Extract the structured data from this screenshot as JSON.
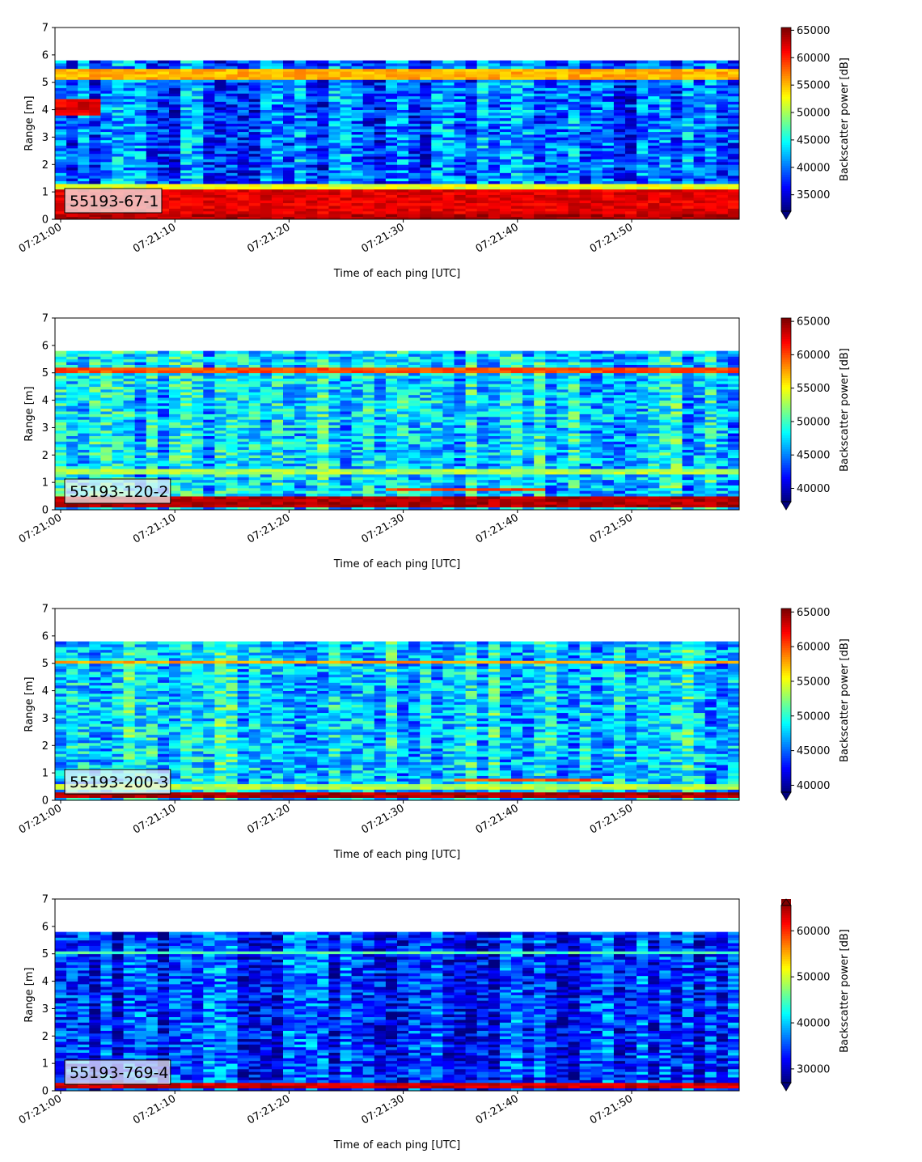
{
  "chart_data": [
    {
      "type": "heatmap",
      "label": "55193-67-1",
      "xlabel": "Time of each ping [UTC]",
      "ylabel": "Range [m]",
      "x_ticks": [
        "07:21:00",
        "07:21:10",
        "07:21:20",
        "07:21:30",
        "07:21:40",
        "07:21:50"
      ],
      "ylim": [
        0,
        7
      ],
      "y_ticks": [
        "0",
        "1",
        "2",
        "3",
        "4",
        "5",
        "6",
        "7"
      ],
      "data_range_max": 5.85,
      "colorbar_label": "Backscatter power [dB]",
      "colorbar_min": 32000,
      "colorbar_max": 65500,
      "colorbar_ticks": [
        35000,
        40000,
        45000,
        50000,
        55000,
        60000,
        65000
      ],
      "colorbar_extend": "min",
      "features": [
        {
          "y0": 0.0,
          "y1": 0.25,
          "level": 0.95
        },
        {
          "y0": 0.25,
          "y1": 1.1,
          "level": 0.9
        },
        {
          "y0": 1.1,
          "y1": 1.3,
          "level": 0.6
        },
        {
          "y0": 5.1,
          "y1": 5.55,
          "level": 0.7
        },
        {
          "y0": 3.8,
          "y1": 4.4,
          "level": 0.9,
          "t0": 0,
          "t1": 4
        }
      ],
      "background_level": 0.22
    },
    {
      "type": "heatmap",
      "label": "55193-120-2",
      "xlabel": "Time of each ping [UTC]",
      "ylabel": "Range [m]",
      "x_ticks": [
        "07:21:00",
        "07:21:10",
        "07:21:20",
        "07:21:30",
        "07:21:40",
        "07:21:50"
      ],
      "ylim": [
        0,
        7
      ],
      "y_ticks": [
        "0",
        "1",
        "2",
        "3",
        "4",
        "5",
        "6",
        "7"
      ],
      "data_range_max": 5.8,
      "colorbar_label": "Backscatter power [dB]",
      "colorbar_min": 38000,
      "colorbar_max": 65500,
      "colorbar_ticks": [
        40000,
        45000,
        50000,
        55000,
        60000,
        65000
      ],
      "colorbar_extend": "min",
      "features": [
        {
          "y0": 0.1,
          "y1": 0.55,
          "level": 0.95
        },
        {
          "y0": 1.3,
          "y1": 1.55,
          "level": 0.55
        },
        {
          "y0": 5.05,
          "y1": 5.2,
          "level": 0.8
        },
        {
          "y0": 0.7,
          "y1": 0.85,
          "level": 0.8,
          "t0": 29,
          "t1": 43
        }
      ],
      "background_level": 0.35
    },
    {
      "type": "heatmap",
      "label": "55193-200-3",
      "xlabel": "Time of each ping [UTC]",
      "ylabel": "Range [m]",
      "x_ticks": [
        "07:21:00",
        "07:21:10",
        "07:21:20",
        "07:21:30",
        "07:21:40",
        "07:21:50"
      ],
      "ylim": [
        0,
        7
      ],
      "y_ticks": [
        "0",
        "1",
        "2",
        "3",
        "4",
        "5",
        "6",
        "7"
      ],
      "data_range_max": 5.8,
      "colorbar_label": "Backscatter power [dB]",
      "colorbar_min": 39000,
      "colorbar_max": 65500,
      "colorbar_ticks": [
        40000,
        45000,
        50000,
        55000,
        60000,
        65000
      ],
      "colorbar_extend": "min",
      "features": [
        {
          "y0": 0.1,
          "y1": 0.35,
          "level": 0.95
        },
        {
          "y0": 0.4,
          "y1": 0.6,
          "level": 0.55
        },
        {
          "y0": 5.0,
          "y1": 5.15,
          "level": 0.72
        },
        {
          "y0": 0.72,
          "y1": 0.85,
          "level": 0.8,
          "t0": 35,
          "t1": 48
        }
      ],
      "background_level": 0.35
    },
    {
      "type": "heatmap",
      "label": "55193-769-4",
      "xlabel": "Time of each ping [UTC]",
      "ylabel": "Range [m]",
      "x_ticks": [
        "07:21:00",
        "07:21:10",
        "07:21:20",
        "07:21:30",
        "07:21:40",
        "07:21:50"
      ],
      "ylim": [
        0,
        7
      ],
      "y_ticks": [
        "0",
        "1",
        "2",
        "3",
        "4",
        "5",
        "6",
        "7"
      ],
      "data_range_max": 5.8,
      "colorbar_label": "Backscatter power [dB]",
      "colorbar_min": 27000,
      "colorbar_max": 65500,
      "colorbar_ticks": [
        30000,
        40000,
        50000,
        60000
      ],
      "colorbar_extend": "both",
      "features": [
        {
          "y0": 0.1,
          "y1": 0.3,
          "level": 0.92
        },
        {
          "y0": 5.05,
          "y1": 5.15,
          "level": 0.45
        }
      ],
      "background_level": 0.17
    }
  ]
}
